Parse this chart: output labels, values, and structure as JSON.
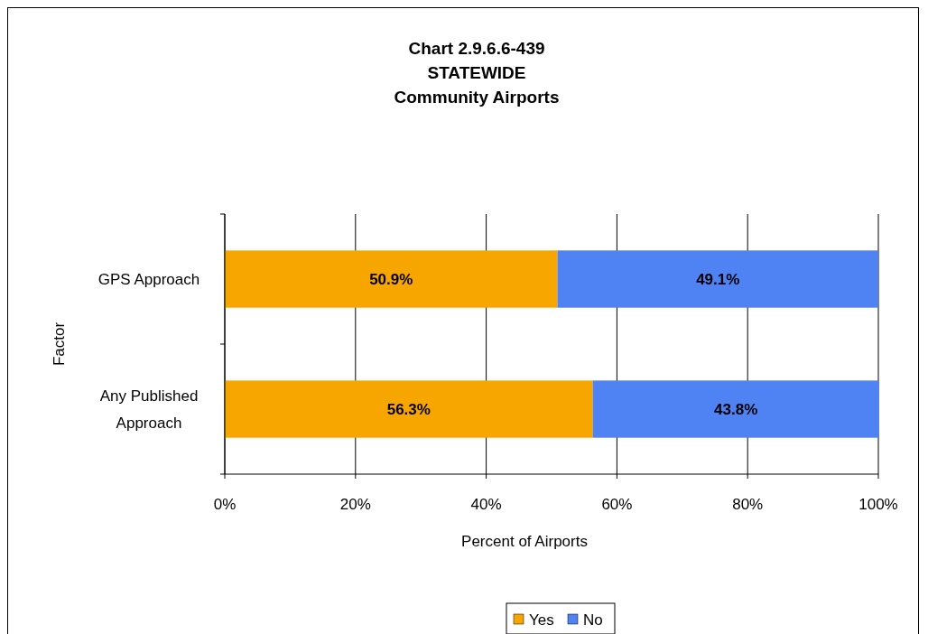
{
  "chart_data": {
    "type": "bar",
    "orientation": "horizontal",
    "stacked": true,
    "title": "Chart 2.9.6.6-439\nSTATEWIDE\nCommunity Airports",
    "xlabel": "Percent of Airports",
    "ylabel": "Factor",
    "categories": [
      "GPS Approach",
      "Any Published Approach"
    ],
    "series": [
      {
        "name": "Yes",
        "color": "#f7a600",
        "values": [
          50.9,
          56.3
        ],
        "value_labels": [
          "50.9%",
          "56.3%"
        ]
      },
      {
        "name": "No",
        "color": "#4f82f2",
        "values": [
          49.1,
          43.8
        ],
        "value_labels": [
          "49.1%",
          "43.8%"
        ]
      }
    ],
    "xlim": [
      0,
      100
    ],
    "xticks": [
      {
        "value": 0,
        "label": "0%"
      },
      {
        "value": 20,
        "label": "20%"
      },
      {
        "value": 40,
        "label": "40%"
      },
      {
        "value": 60,
        "label": "60%"
      },
      {
        "value": 80,
        "label": "80%"
      },
      {
        "value": 100,
        "label": "100%"
      }
    ],
    "grid": "x",
    "legend": "bottom"
  }
}
